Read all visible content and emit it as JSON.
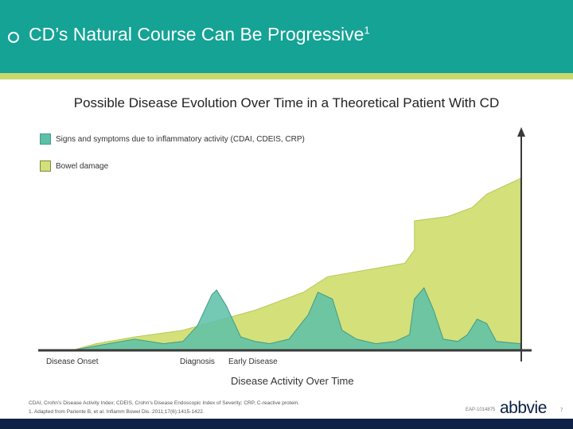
{
  "header": {
    "title": "CD’s Natural Course Can Be Progressive",
    "superscript": "1",
    "colors": {
      "bar": "#14a394",
      "accent": "#c9d96e"
    }
  },
  "chart_data": {
    "type": "area",
    "title": "Possible Disease Evolution Over Time in a Theoretical Patient With CD",
    "xlabel": "Disease Activity Over Time",
    "ylabel": "",
    "x_markers": [
      "Disease Onset",
      "Diagnosis",
      "Early Disease"
    ],
    "legend_placement": "top-left",
    "grid": false,
    "x_range": [
      0,
      1
    ],
    "y_range": [
      0,
      1
    ],
    "series": [
      {
        "name": "Signs and symptoms due to inflammatory activity (CDAI, CDEIS, CRP)",
        "color": "#5cc0a8",
        "points": [
          [
            0,
            0
          ],
          [
            0.07,
            0
          ],
          [
            0.12,
            0.02
          ],
          [
            0.2,
            0.05
          ],
          [
            0.26,
            0.03
          ],
          [
            0.3,
            0.04
          ],
          [
            0.33,
            0.11
          ],
          [
            0.36,
            0.25
          ],
          [
            0.37,
            0.27
          ],
          [
            0.39,
            0.2
          ],
          [
            0.42,
            0.06
          ],
          [
            0.45,
            0.04
          ],
          [
            0.48,
            0.03
          ],
          [
            0.52,
            0.05
          ],
          [
            0.56,
            0.16
          ],
          [
            0.58,
            0.26
          ],
          [
            0.61,
            0.23
          ],
          [
            0.63,
            0.09
          ],
          [
            0.66,
            0.05
          ],
          [
            0.7,
            0.03
          ],
          [
            0.74,
            0.04
          ],
          [
            0.77,
            0.07
          ],
          [
            0.78,
            0.23
          ],
          [
            0.8,
            0.28
          ],
          [
            0.82,
            0.18
          ],
          [
            0.84,
            0.05
          ],
          [
            0.87,
            0.04
          ],
          [
            0.89,
            0.07
          ],
          [
            0.91,
            0.14
          ],
          [
            0.93,
            0.12
          ],
          [
            0.95,
            0.04
          ],
          [
            1,
            0.03
          ]
        ]
      },
      {
        "name": "Bowel damage",
        "color": "#d4e07a",
        "points": [
          [
            0,
            0
          ],
          [
            0.07,
            0
          ],
          [
            0.12,
            0.03
          ],
          [
            0.2,
            0.06
          ],
          [
            0.3,
            0.09
          ],
          [
            0.45,
            0.18
          ],
          [
            0.55,
            0.26
          ],
          [
            0.6,
            0.33
          ],
          [
            0.76,
            0.39
          ],
          [
            0.78,
            0.45
          ],
          [
            0.78,
            0.58
          ],
          [
            0.85,
            0.6
          ],
          [
            0.9,
            0.64
          ],
          [
            0.93,
            0.7
          ],
          [
            1,
            0.77
          ]
        ]
      }
    ]
  },
  "legend": {
    "items": [
      {
        "label": "Signs and symptoms due to inflammatory activity (CDAI, CDEIS, CRP)",
        "color": "#5cc0a8"
      },
      {
        "label": "Bowel damage",
        "color": "#d4e07a"
      }
    ]
  },
  "footer": {
    "line1": "CDAI, Crohn’s Disease Activity Index; CDEIS, Crohn’s Disease Endoscopic Index of Severity; CRP, C-reactive protein.",
    "line2": "1. Adapted from Pariente B, et al. Inflamm Bowel Dis. 2011;17(6):1415-1422.",
    "code": "EAP-1014875",
    "logo": "abbvie",
    "page": "7"
  }
}
